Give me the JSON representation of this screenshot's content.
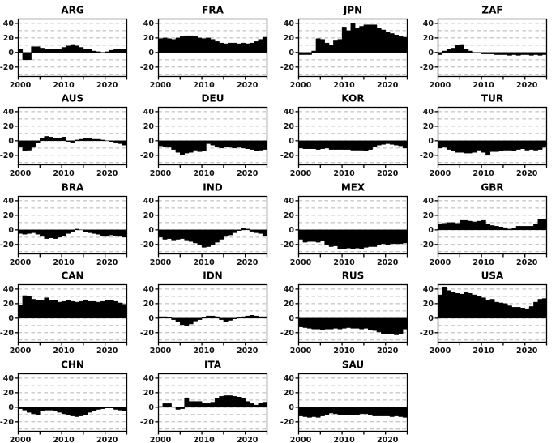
{
  "chart_data": {
    "type": "area",
    "title": "",
    "xlabel": "",
    "ylabel": "",
    "years": [
      2000,
      2001,
      2002,
      2003,
      2004,
      2005,
      2006,
      2007,
      2008,
      2009,
      2010,
      2011,
      2012,
      2013,
      2014,
      2015,
      2016,
      2017,
      2018,
      2019,
      2020,
      2021,
      2022,
      2023,
      2024
    ],
    "xlim": [
      2000,
      2025
    ],
    "ylim": [
      -33,
      46
    ],
    "xticks": [
      2000,
      2010,
      2020
    ],
    "xtick_marks": [
      2000,
      2005,
      2010,
      2015,
      2020,
      2025
    ],
    "yticks": [
      40,
      20,
      0,
      -20
    ],
    "gridlines": [
      40,
      30,
      20,
      10,
      0,
      -10,
      -20,
      -30
    ],
    "grid_style": "dashed",
    "fill_color": "#000000",
    "axis_color": "#000000",
    "grid_color": "#b5b5b5",
    "background_color": "#ffffff",
    "legend": "none",
    "series": [
      {
        "name": "ARG",
        "values": [
          5,
          -10,
          -10,
          8,
          8,
          6,
          5,
          4,
          4,
          5,
          7,
          9,
          11,
          9,
          7,
          5,
          4,
          2,
          1,
          0,
          1,
          3,
          4,
          4,
          4
        ]
      },
      {
        "name": "FRA",
        "values": [
          19,
          20,
          19,
          18,
          20,
          22,
          23,
          23,
          22,
          20,
          19,
          20,
          18,
          15,
          13,
          12,
          13,
          13,
          12,
          13,
          12,
          13,
          15,
          18,
          21
        ]
      },
      {
        "name": "JPN",
        "values": [
          -3,
          -3,
          -3,
          2,
          19,
          18,
          13,
          10,
          16,
          18,
          35,
          30,
          40,
          33,
          36,
          38,
          38,
          38,
          34,
          31,
          28,
          26,
          24,
          22,
          21
        ]
      },
      {
        "name": "ZAF",
        "values": [
          -3,
          2,
          4,
          6,
          10,
          11,
          5,
          2,
          0,
          -1,
          -2,
          -2,
          -2,
          -3,
          -3,
          -3,
          -4,
          -3,
          -4,
          -3,
          -3,
          -4,
          -3,
          -4,
          -3
        ]
      },
      {
        "name": "AUS",
        "values": [
          -8,
          -14,
          -13,
          -9,
          -3,
          4,
          6,
          5,
          4,
          4,
          5,
          -1,
          -2,
          1,
          2,
          3,
          3,
          2,
          2,
          1,
          0,
          -1,
          -2,
          -4,
          -6
        ]
      },
      {
        "name": "DEU",
        "values": [
          -7,
          -8,
          -9,
          -12,
          -16,
          -19,
          -17,
          -16,
          -13,
          -15,
          -14,
          -4,
          -6,
          -8,
          -10,
          -8,
          -9,
          -10,
          -9,
          -10,
          -11,
          -12,
          -14,
          -13,
          -12
        ]
      },
      {
        "name": "KOR",
        "values": [
          -10,
          -11,
          -11,
          -11,
          -12,
          -11,
          -10,
          -12,
          -12,
          -12,
          -12,
          -12,
          -13,
          -13,
          -13,
          -14,
          -12,
          -8,
          -6,
          -5,
          -4,
          -5,
          -6,
          -7,
          -10
        ]
      },
      {
        "name": "TUR",
        "values": [
          -10,
          -9,
          -12,
          -14,
          -16,
          -16,
          -17,
          -17,
          -16,
          -13,
          -16,
          -20,
          -15,
          -15,
          -14,
          -13,
          -13,
          -14,
          -12,
          -11,
          -13,
          -12,
          -13,
          -12,
          -9
        ]
      },
      {
        "name": "BRA",
        "values": [
          -5,
          -6,
          -5,
          -4,
          -6,
          -9,
          -12,
          -11,
          -12,
          -10,
          -8,
          -5,
          -2,
          1,
          0,
          -3,
          -4,
          -5,
          -6,
          -8,
          -9,
          -7,
          -8,
          -9,
          -10
        ]
      },
      {
        "name": "IND",
        "values": [
          -10,
          -13,
          -12,
          -14,
          -13,
          -12,
          -14,
          -16,
          -18,
          -20,
          -24,
          -23,
          -21,
          -17,
          -13,
          -9,
          -7,
          -4,
          -1,
          2,
          1,
          -2,
          -4,
          -5,
          -8
        ]
      },
      {
        "name": "MEX",
        "values": [
          -13,
          -17,
          -16,
          -16,
          -17,
          -15,
          -21,
          -23,
          -22,
          -26,
          -26,
          -25,
          -26,
          -25,
          -26,
          -24,
          -23,
          -23,
          -20,
          -19,
          -20,
          -19,
          -19,
          -19,
          -18
        ]
      },
      {
        "name": "GBR",
        "values": [
          8,
          9,
          10,
          10,
          9,
          13,
          13,
          12,
          11,
          12,
          13,
          8,
          6,
          5,
          4,
          3,
          1,
          2,
          5,
          5,
          5,
          5,
          8,
          15,
          15
        ]
      },
      {
        "name": "CAN",
        "values": [
          18,
          31,
          30,
          26,
          25,
          24,
          28,
          24,
          25,
          22,
          23,
          24,
          23,
          22,
          23,
          25,
          23,
          23,
          22,
          23,
          24,
          25,
          23,
          21,
          19
        ]
      },
      {
        "name": "IDN",
        "values": [
          2,
          2,
          1,
          -2,
          -5,
          -9,
          -11,
          -8,
          -4,
          -2,
          1,
          3,
          3,
          2,
          -2,
          -5,
          -3,
          -1,
          1,
          2,
          3,
          4,
          3,
          2,
          2
        ]
      },
      {
        "name": "RUS",
        "values": [
          -12,
          -13,
          -14,
          -15,
          -15,
          -16,
          -15,
          -15,
          -14,
          -15,
          -14,
          -13,
          -14,
          -14,
          -15,
          -14,
          -16,
          -17,
          -19,
          -21,
          -21,
          -22,
          -23,
          -21,
          -15
        ]
      },
      {
        "name": "USA",
        "values": [
          32,
          43,
          38,
          36,
          34,
          33,
          36,
          34,
          32,
          30,
          28,
          24,
          26,
          22,
          21,
          20,
          17,
          15,
          15,
          14,
          13,
          16,
          22,
          26,
          27
        ]
      },
      {
        "name": "CHN",
        "values": [
          -2,
          -4,
          -7,
          -9,
          -10,
          -5,
          -4,
          -4,
          -5,
          -7,
          -9,
          -11,
          -12,
          -13,
          -12,
          -10,
          -7,
          -5,
          -3,
          -2,
          -1,
          -1,
          -3,
          -4,
          -5
        ]
      },
      {
        "name": "ITA",
        "values": [
          1,
          5,
          5,
          0,
          -3,
          -2,
          13,
          8,
          8,
          8,
          6,
          5,
          7,
          12,
          15,
          16,
          16,
          15,
          14,
          12,
          8,
          5,
          3,
          6,
          7
        ]
      },
      {
        "name": "SAU",
        "values": [
          -12,
          -13,
          -14,
          -13,
          -14,
          -12,
          -10,
          -8,
          -9,
          -10,
          -10,
          -11,
          -11,
          -10,
          -9,
          -9,
          -11,
          -12,
          -12,
          -12,
          -12,
          -13,
          -12,
          -13,
          -14
        ]
      }
    ]
  }
}
